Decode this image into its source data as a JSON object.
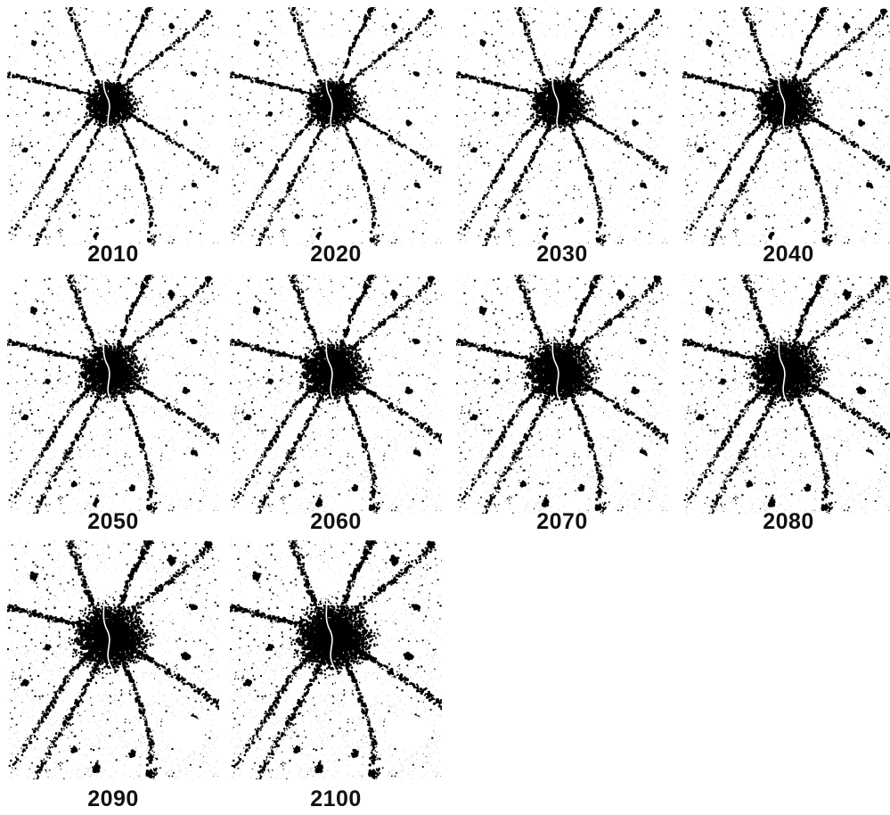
{
  "panels": [
    {
      "year": "2010",
      "urban_extent": 0.0
    },
    {
      "year": "2020",
      "urban_extent": 0.11
    },
    {
      "year": "2030",
      "urban_extent": 0.22
    },
    {
      "year": "2040",
      "urban_extent": 0.33
    },
    {
      "year": "2050",
      "urban_extent": 0.44
    },
    {
      "year": "2060",
      "urban_extent": 0.56
    },
    {
      "year": "2070",
      "urban_extent": 0.67
    },
    {
      "year": "2080",
      "urban_extent": 0.78
    },
    {
      "year": "2090",
      "urban_extent": 0.89
    },
    {
      "year": "2100",
      "urban_extent": 1.0
    }
  ],
  "colors": {
    "urban": "#000000",
    "background": "#ffffff",
    "haze": "#bdbdbd"
  }
}
